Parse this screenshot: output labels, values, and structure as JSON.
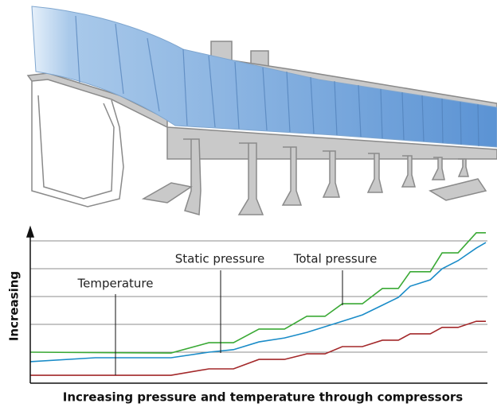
{
  "chart_data": {
    "type": "line",
    "y_label": "Increasing",
    "x_label": "Increasing pressure and temperature through compressors",
    "xlim": [
      0,
      100
    ],
    "ylim": [
      0,
      5.4
    ],
    "yticks": [
      1,
      2,
      3,
      4,
      5
    ],
    "grid": true,
    "annotations": [
      "Temperature",
      "Static pressure",
      "Total pressure"
    ],
    "series": [
      {
        "name": "Total pressure",
        "color": "#3aa935",
        "x": [
          0,
          30.9,
          39.2,
          44.6,
          50.2,
          55.8,
          60.7,
          64.7,
          68.5,
          72.9,
          77.3,
          80.8,
          83.4,
          87.8,
          90.4,
          93.9,
          97.9,
          100
        ],
        "values": [
          1.0,
          0.97,
          1.34,
          1.34,
          1.83,
          1.83,
          2.29,
          2.29,
          2.74,
          2.74,
          3.29,
          3.29,
          3.89,
          3.89,
          4.57,
          4.57,
          5.29,
          5.29
        ]
      },
      {
        "name": "Static pressure",
        "color": "#1a8cc8",
        "x": [
          0,
          14.3,
          30.9,
          39.2,
          44.6,
          50.2,
          55.8,
          60.7,
          68.5,
          72.9,
          77.3,
          80.8,
          83.4,
          87.8,
          90.4,
          93.9,
          97.9,
          100
        ],
        "values": [
          0.66,
          0.8,
          0.8,
          1.0,
          1.09,
          1.37,
          1.51,
          1.71,
          2.11,
          2.34,
          2.69,
          2.97,
          3.37,
          3.6,
          4.0,
          4.29,
          4.74,
          4.94
        ]
      },
      {
        "name": "Temperature",
        "color": "#a3282a",
        "x": [
          0,
          30.9,
          39.2,
          44.6,
          50.2,
          55.8,
          60.7,
          64.7,
          68.5,
          72.9,
          77.3,
          80.8,
          83.4,
          87.8,
          90.4,
          93.9,
          97.9,
          100
        ],
        "values": [
          0.17,
          0.17,
          0.4,
          0.4,
          0.74,
          0.74,
          0.94,
          0.94,
          1.2,
          1.2,
          1.43,
          1.43,
          1.66,
          1.66,
          1.89,
          1.89,
          2.11,
          2.11
        ]
      }
    ]
  }
}
